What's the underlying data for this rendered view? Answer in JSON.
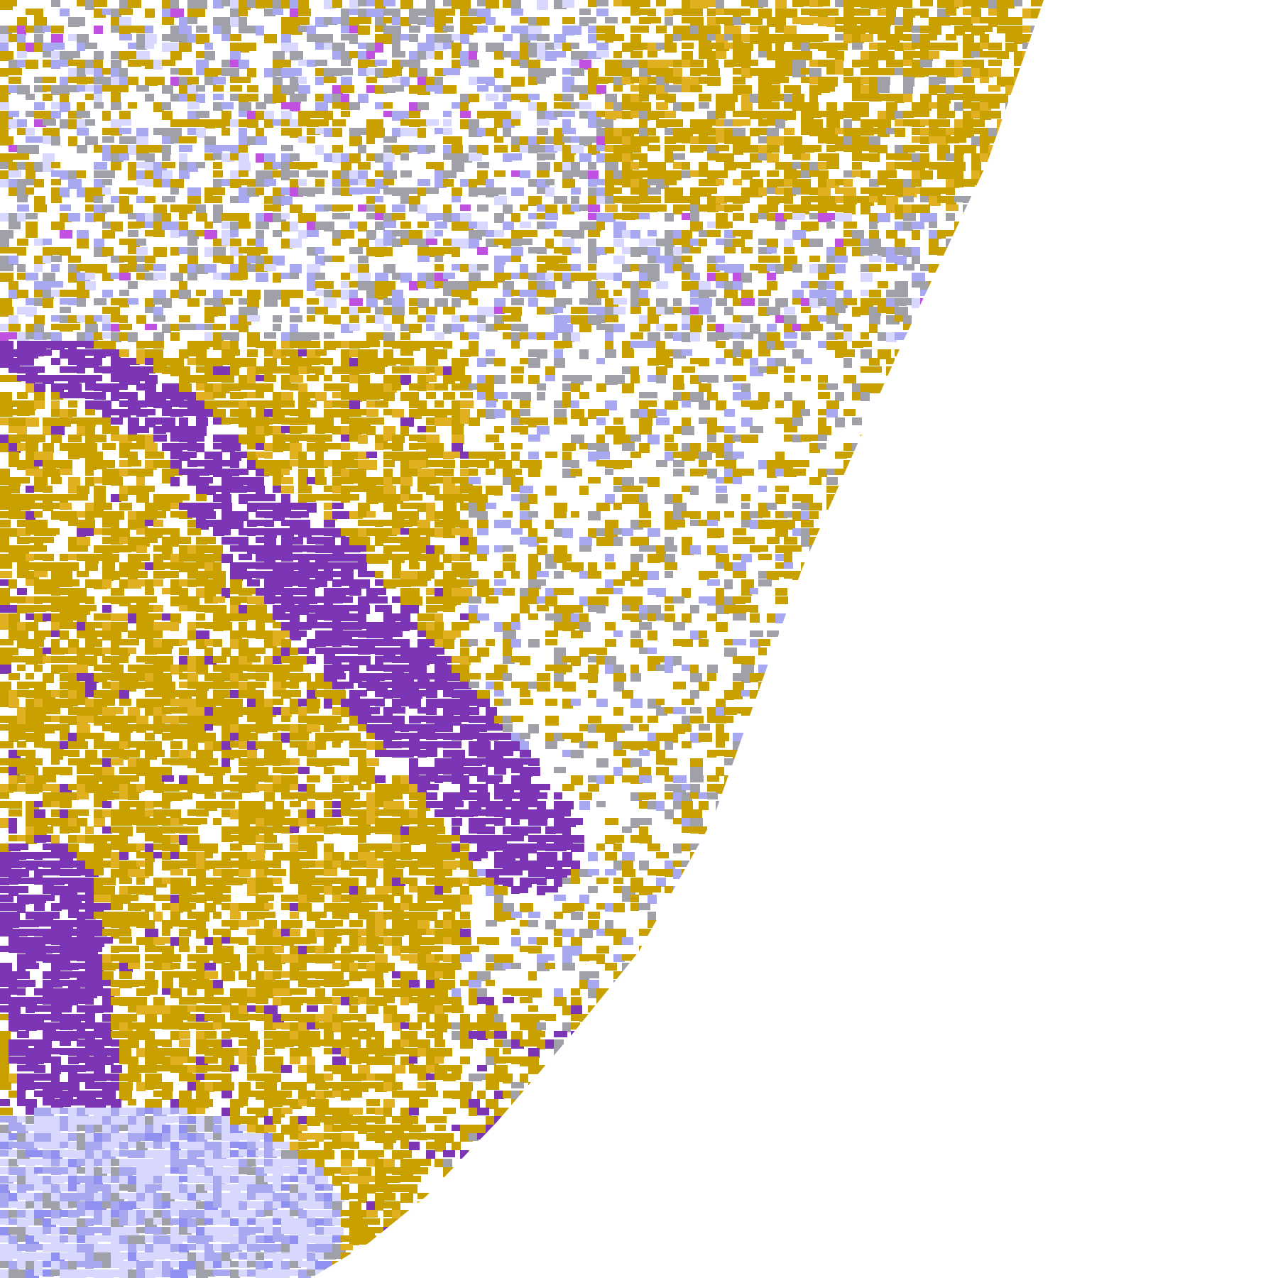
{
  "map": {
    "palette": {
      "background": "#ffffff",
      "gold": "#c8a000",
      "gold_light": "#e0b020",
      "purple": "#7b35b5",
      "magenta": "#c050e0",
      "grey": "#a0a0a8",
      "lavender": "#a8a8f0",
      "lavender_light": "#d8d8ff",
      "periwinkle": "#9090f0"
    }
  }
}
